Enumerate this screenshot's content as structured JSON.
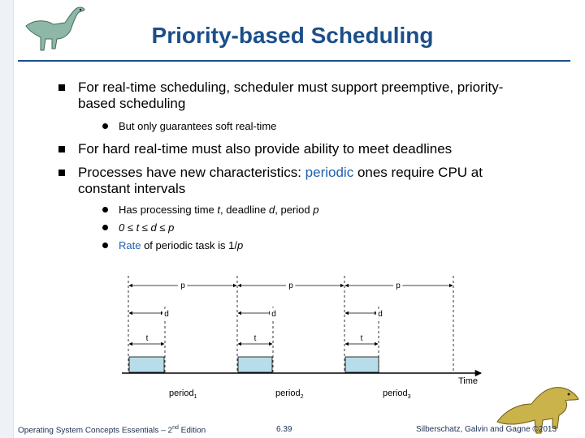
{
  "title": "Priority-based Scheduling",
  "bullets": {
    "b1_line1": "For real-time scheduling, scheduler must support preemptive, priority-",
    "b1_line2": "based scheduling",
    "b1_sub": "But only guarantees soft real-time",
    "b2": "For hard real-time must also provide ability to meet deadlines",
    "b3_pre": "Processes have new characteristics: ",
    "b3_hl": "periodic",
    "b3_post": " ones require CPU at",
    "b3_line2": "constant intervals",
    "b3_sub1_a": "Has processing time ",
    "b3_sub1_t": "t",
    "b3_sub1_b": ", deadline ",
    "b3_sub1_d": "d",
    "b3_sub1_c": ", period ",
    "b3_sub1_p": "p",
    "b3_sub2": "0 ≤ t ≤ d ≤ p",
    "b3_sub3_hl": "Rate",
    "b3_sub3_a": " of periodic task is 1/",
    "b3_sub3_p": "p"
  },
  "diagram": {
    "p_label": "p",
    "d_label": "d",
    "t_label": "t",
    "axis_label": "Time",
    "period_prefix": "period",
    "period_subs": [
      "1",
      "2",
      "3"
    ]
  },
  "footer": {
    "left_a": "Operating System Concepts Essentials – 2",
    "left_sup": "nd",
    "left_b": " Edition",
    "center": "6.39",
    "right": "Silberschatz, Galvin and Gagne ©2013"
  },
  "colors": {
    "title": "#1c4f8a",
    "highlight": "#1f5fb0",
    "task_fill": "#b7dcea"
  }
}
